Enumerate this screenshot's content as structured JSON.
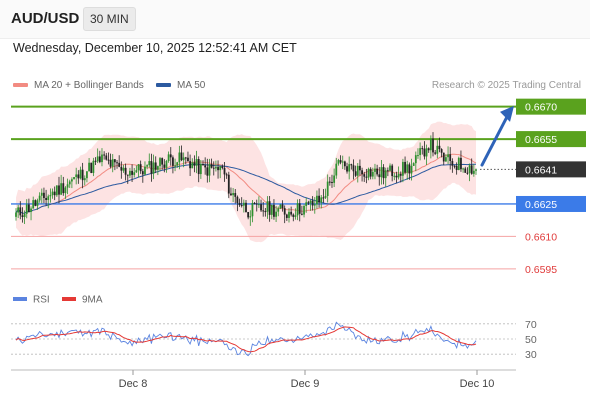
{
  "header": {
    "pair": "AUD/USD",
    "interval": "30 MIN",
    "datetime": "Wednesday, December 10, 2025 12:52:41 AM CET"
  },
  "legend": {
    "ma20": "MA 20 + Bollinger Bands",
    "ma50": "MA 50",
    "credit": "Research © 2025 Trading Central"
  },
  "rsi_legend": {
    "rsi": "RSI",
    "ma": "9MA"
  },
  "colors": {
    "ma20": "#f28b82",
    "ma50": "#2c5aa0",
    "band_fill": "#fcd9d9",
    "resistance": "#5aa21e",
    "support": "#3b7be8",
    "weak_support": "#f5a3a3",
    "weak_support_text": "#e03b3b",
    "candle_up": "#2f8f2f",
    "candle_down": "#222222",
    "current_label": "#333333",
    "rsi_line": "#5b84e0",
    "rsi_ma": "#e53935",
    "arrow": "#2e63b8"
  },
  "chart_data": {
    "type": "candlestick",
    "ylim": [
      0.6588,
      0.6674
    ],
    "x_ticks": [
      "Dec 8",
      "Dec 9",
      "Dec 10"
    ],
    "current_price": "0.6641",
    "levels": [
      {
        "label": "0.6670",
        "value": 0.667,
        "kind": "resistance"
      },
      {
        "label": "0.6655",
        "value": 0.6655,
        "kind": "resistance"
      },
      {
        "label": "0.6625",
        "value": 0.6625,
        "kind": "support"
      },
      {
        "label": "0.6610",
        "value": 0.661,
        "kind": "weak_support"
      },
      {
        "label": "0.6595",
        "value": 0.6595,
        "kind": "weak_support"
      }
    ],
    "target": 0.6669,
    "rsi": {
      "levels": [
        70,
        50,
        30
      ],
      "ylim": [
        25,
        75
      ]
    }
  }
}
